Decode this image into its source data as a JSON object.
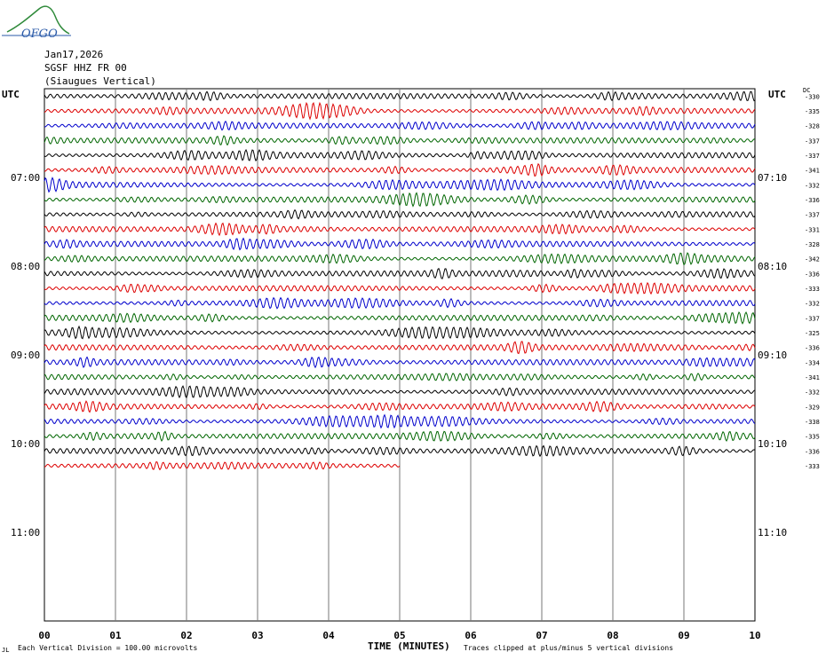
{
  "logo": {
    "text": "OFGO"
  },
  "header": {
    "date": "Jan17,2026",
    "station": "SGSF HHZ FR 00",
    "location": "(Siaugues Vertical)"
  },
  "axis": {
    "left_tz": "UTC",
    "right_tz": "UTC",
    "dc_header": "DC",
    "xlabel": "TIME (MINUTES)",
    "x_ticks": [
      "00",
      "01",
      "02",
      "03",
      "04",
      "05",
      "06",
      "07",
      "08",
      "09",
      "10"
    ],
    "left_hours": [
      "07:00",
      "08:00",
      "09:00",
      "10:00",
      "11:00"
    ],
    "right_hours": [
      "07:10",
      "08:10",
      "09:10",
      "10:10",
      "11:10"
    ]
  },
  "footer": {
    "left_mark": "JL",
    "scale": "Each Vertical Division =  100.00 microvolts",
    "clip": "Traces clipped at plus/minus 5 vertical divisions"
  },
  "colors": {
    "cycle": [
      "#000000",
      "#dd0000",
      "#0000cc",
      "#006600"
    ]
  },
  "chart_data": {
    "type": "line",
    "title": "",
    "xlabel": "TIME (MINUTES)",
    "xlim": [
      0,
      10
    ],
    "lines_per_hour": 6,
    "minutes_per_line": 10,
    "total_slots": 36,
    "trace_count": 26,
    "last_trace_end_minute": 5,
    "dc_offsets": [
      "-330",
      "-335",
      "-328",
      "-337",
      "-337",
      "-341",
      "-332",
      "-336",
      "-337",
      "-331",
      "-328",
      "-342",
      "-336",
      "-333",
      "-332",
      "-337",
      "-325",
      "-336",
      "-334",
      "-341",
      "-332",
      "-329",
      "-338",
      "-335",
      "-336",
      "-333"
    ]
  }
}
